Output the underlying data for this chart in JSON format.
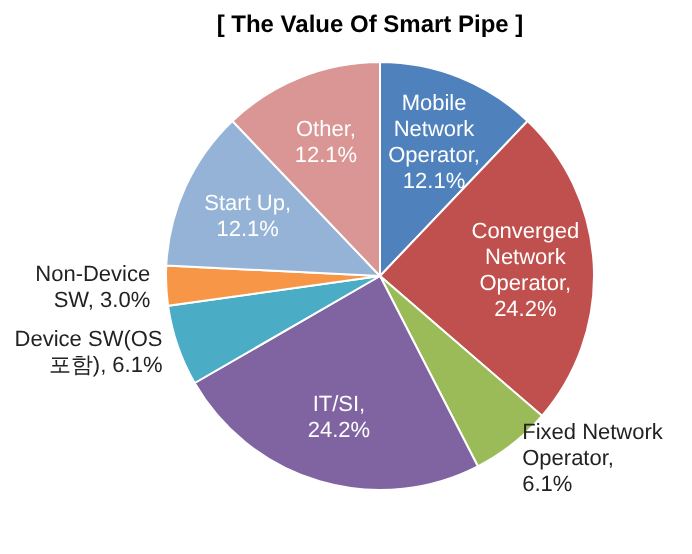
{
  "chart_data": {
    "type": "pie",
    "title": "[ The Value Of Smart Pipe ]",
    "categories": [
      "Mobile Network Operator",
      "Converged Network Operator",
      "Fixed Network Operator",
      "IT/SI",
      "Device SW(OS 포함)",
      "Non-Device SW",
      "Start Up",
      "Other"
    ],
    "values": [
      12.1,
      24.2,
      6.1,
      24.2,
      6.1,
      3.0,
      12.1,
      12.1
    ],
    "colors": [
      "#4f81bd",
      "#c0504d",
      "#9bbb59",
      "#8064a2",
      "#4bacc6",
      "#f79646",
      "#95b3d7",
      "#d99694"
    ],
    "value_labels": [
      ", 12.1%",
      ", 24.2%",
      ", 6.1%",
      ", 24.2%",
      ", 6.1%",
      ", 3.0%",
      ", 12.1%",
      ", 12.1%"
    ]
  }
}
